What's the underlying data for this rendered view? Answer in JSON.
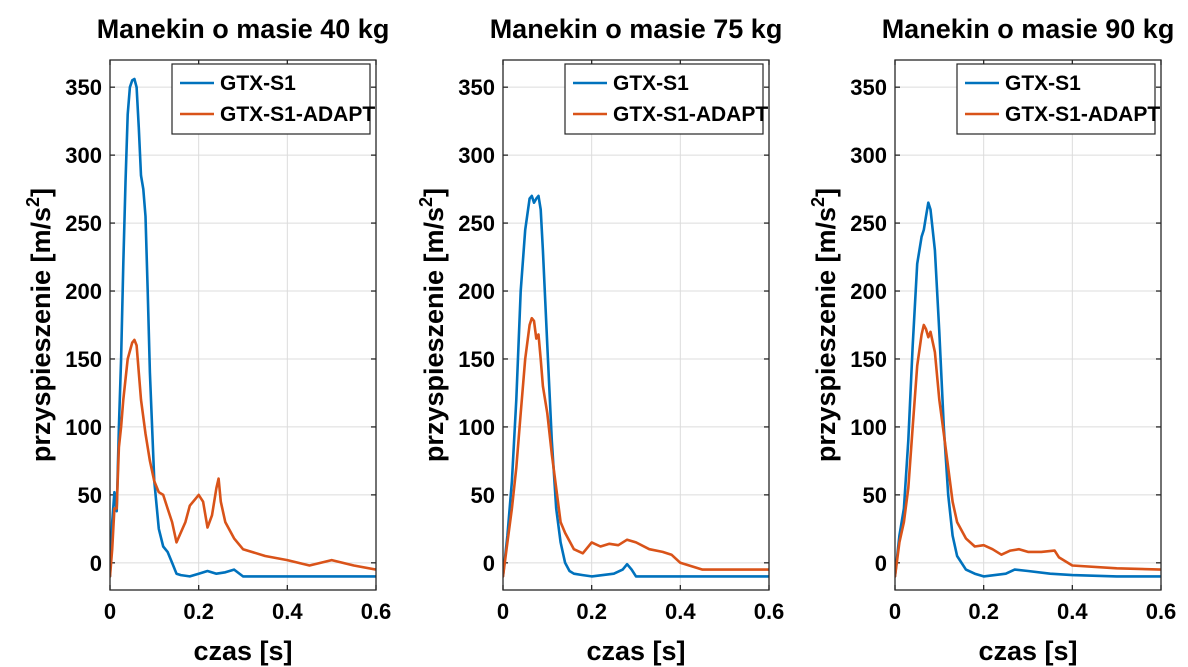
{
  "chart_data": [
    {
      "type": "line",
      "title": "Manekin o masie 40 kg",
      "xlabel": "czas [s]",
      "ylabel": "przyspieszenie [m/s",
      "ylabel_sup": "2",
      "ylabel_end": "]",
      "xlim": [
        0,
        0.6
      ],
      "ylim": [
        -20,
        370
      ],
      "xticks": [
        "0",
        "0.2",
        "0.4",
        "0.6"
      ],
      "yticks": [
        "0",
        "50",
        "100",
        "150",
        "200",
        "250",
        "300",
        "350"
      ],
      "grid": true,
      "legend_position": "top-right",
      "series": [
        {
          "name": "GTX-S1",
          "color": "#0072BD",
          "x": [
            0,
            0.005,
            0.01,
            0.015,
            0.02,
            0.025,
            0.03,
            0.035,
            0.04,
            0.045,
            0.05,
            0.055,
            0.06,
            0.065,
            0.07,
            0.075,
            0.08,
            0.085,
            0.09,
            0.1,
            0.11,
            0.12,
            0.13,
            0.14,
            0.15,
            0.16,
            0.18,
            0.2,
            0.22,
            0.24,
            0.26,
            0.28,
            0.3,
            0.4,
            0.5,
            0.6
          ],
          "values": [
            -10,
            30,
            52,
            38,
            100,
            150,
            220,
            280,
            330,
            350,
            355,
            356,
            350,
            320,
            285,
            275,
            255,
            200,
            140,
            60,
            25,
            12,
            8,
            0,
            -8,
            -9,
            -10,
            -8,
            -6,
            -8,
            -7,
            -5,
            -10,
            -10,
            -10,
            -10
          ]
        },
        {
          "name": "GTX-S1-ADAPT",
          "color": "#D95319",
          "x": [
            0,
            0.005,
            0.01,
            0.015,
            0.02,
            0.025,
            0.03,
            0.04,
            0.05,
            0.055,
            0.06,
            0.07,
            0.08,
            0.09,
            0.1,
            0.11,
            0.12,
            0.13,
            0.14,
            0.15,
            0.17,
            0.18,
            0.2,
            0.21,
            0.22,
            0.23,
            0.24,
            0.245,
            0.25,
            0.26,
            0.28,
            0.3,
            0.35,
            0.4,
            0.45,
            0.5,
            0.55,
            0.6
          ],
          "values": [
            -10,
            10,
            40,
            40,
            85,
            100,
            120,
            150,
            162,
            164,
            160,
            120,
            95,
            75,
            60,
            52,
            50,
            40,
            30,
            15,
            30,
            42,
            50,
            45,
            26,
            35,
            55,
            62,
            45,
            30,
            18,
            10,
            5,
            2,
            -2,
            2,
            -2,
            -5
          ]
        }
      ]
    },
    {
      "type": "line",
      "title": "Manekin o masie 75 kg",
      "xlabel": "czas [s]",
      "ylabel": "przyspieszenie [m/s",
      "ylabel_sup": "2",
      "ylabel_end": "]",
      "xlim": [
        0,
        0.6
      ],
      "ylim": [
        -20,
        370
      ],
      "xticks": [
        "0",
        "0.2",
        "0.4",
        "0.6"
      ],
      "yticks": [
        "0",
        "50",
        "100",
        "150",
        "200",
        "250",
        "300",
        "350"
      ],
      "grid": true,
      "legend_position": "top-right",
      "series": [
        {
          "name": "GTX-S1",
          "color": "#0072BD",
          "x": [
            0,
            0.01,
            0.02,
            0.03,
            0.04,
            0.05,
            0.06,
            0.065,
            0.07,
            0.075,
            0.08,
            0.085,
            0.09,
            0.1,
            0.11,
            0.12,
            0.13,
            0.14,
            0.15,
            0.16,
            0.18,
            0.2,
            0.25,
            0.27,
            0.28,
            0.29,
            0.3,
            0.35,
            0.4,
            0.5,
            0.6
          ],
          "values": [
            -10,
            20,
            60,
            120,
            200,
            245,
            268,
            270,
            265,
            268,
            270,
            260,
            230,
            160,
            90,
            40,
            15,
            0,
            -6,
            -8,
            -9,
            -10,
            -8,
            -5,
            -1,
            -5,
            -10,
            -10,
            -10,
            -10,
            -10
          ]
        },
        {
          "name": "GTX-S1-ADAPT",
          "color": "#D95319",
          "x": [
            0,
            0.01,
            0.02,
            0.03,
            0.04,
            0.05,
            0.06,
            0.065,
            0.07,
            0.075,
            0.08,
            0.085,
            0.09,
            0.1,
            0.11,
            0.12,
            0.13,
            0.14,
            0.16,
            0.18,
            0.2,
            0.22,
            0.24,
            0.26,
            0.28,
            0.3,
            0.33,
            0.36,
            0.38,
            0.4,
            0.45,
            0.5,
            0.55,
            0.6
          ],
          "values": [
            -10,
            15,
            40,
            70,
            110,
            150,
            175,
            180,
            178,
            165,
            168,
            150,
            130,
            110,
            80,
            55,
            30,
            22,
            10,
            7,
            15,
            12,
            14,
            13,
            17,
            15,
            10,
            8,
            6,
            0,
            -5,
            -5,
            -5,
            -5
          ]
        }
      ]
    },
    {
      "type": "line",
      "title": "Manekin o masie 90 kg",
      "xlabel": "czas [s]",
      "ylabel": "przyspieszenie [m/s",
      "ylabel_sup": "2",
      "ylabel_end": "]",
      "xlim": [
        0,
        0.6
      ],
      "ylim": [
        -20,
        370
      ],
      "xticks": [
        "0",
        "0.2",
        "0.4",
        "0.6"
      ],
      "yticks": [
        "0",
        "50",
        "100",
        "150",
        "200",
        "250",
        "300",
        "350"
      ],
      "grid": true,
      "legend_position": "top-right",
      "series": [
        {
          "name": "GTX-S1",
          "color": "#0072BD",
          "x": [
            0,
            0.01,
            0.02,
            0.03,
            0.04,
            0.05,
            0.06,
            0.065,
            0.07,
            0.075,
            0.08,
            0.09,
            0.1,
            0.11,
            0.12,
            0.13,
            0.14,
            0.16,
            0.18,
            0.2,
            0.25,
            0.27,
            0.3,
            0.35,
            0.4,
            0.5,
            0.6
          ],
          "values": [
            -10,
            20,
            40,
            90,
            160,
            220,
            240,
            245,
            255,
            265,
            260,
            230,
            170,
            100,
            50,
            20,
            5,
            -5,
            -8,
            -10,
            -8,
            -5,
            -6,
            -8,
            -9,
            -10,
            -10
          ]
        },
        {
          "name": "GTX-S1-ADAPT",
          "color": "#D95319",
          "x": [
            0,
            0.01,
            0.02,
            0.03,
            0.04,
            0.05,
            0.06,
            0.065,
            0.07,
            0.075,
            0.08,
            0.09,
            0.1,
            0.11,
            0.12,
            0.13,
            0.14,
            0.16,
            0.18,
            0.2,
            0.22,
            0.24,
            0.26,
            0.28,
            0.3,
            0.33,
            0.36,
            0.37,
            0.4,
            0.5,
            0.6
          ],
          "values": [
            -10,
            15,
            30,
            55,
            100,
            145,
            168,
            175,
            172,
            166,
            170,
            155,
            120,
            95,
            70,
            45,
            30,
            18,
            12,
            13,
            10,
            6,
            9,
            10,
            8,
            8,
            9,
            4,
            -2,
            -4,
            -5
          ]
        }
      ]
    }
  ]
}
